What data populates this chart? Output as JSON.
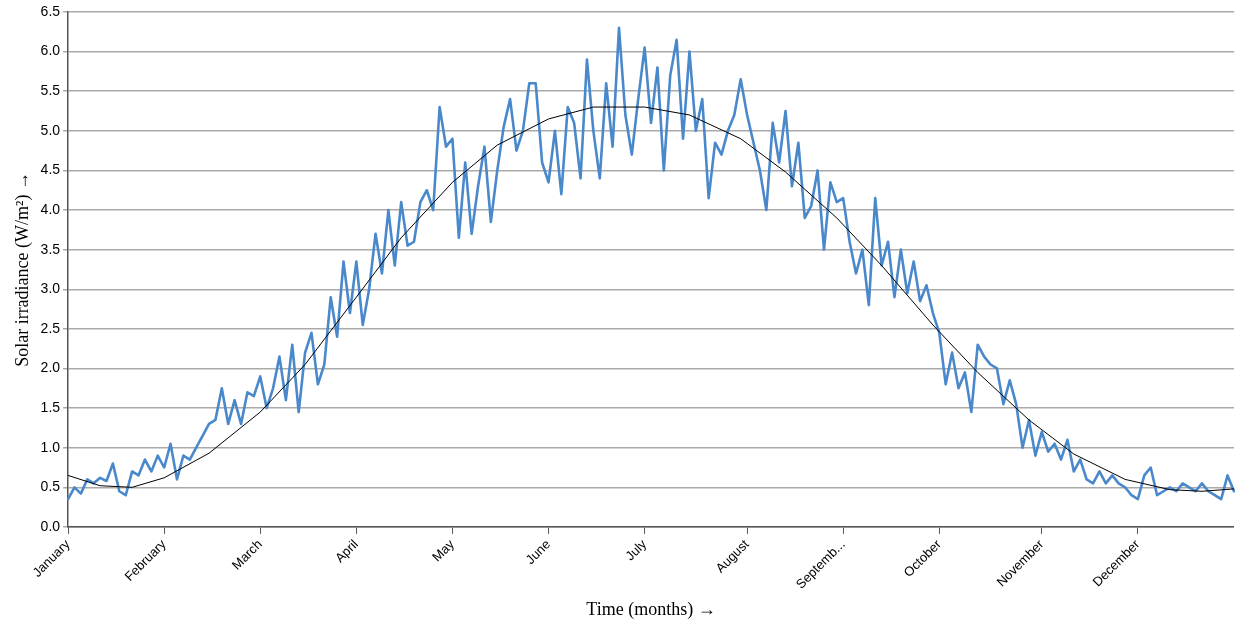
{
  "chart_data": {
    "type": "line",
    "xlabel": "Time (months) →",
    "ylabel": "Solar irradiance (W/m²) →",
    "categories": [
      "January",
      null,
      null,
      null,
      null,
      null,
      null,
      null,
      null,
      null,
      null,
      null,
      null,
      null,
      null,
      "February",
      null,
      null,
      null,
      null,
      null,
      null,
      null,
      null,
      null,
      null,
      null,
      null,
      null,
      null,
      "March",
      null,
      null,
      null,
      null,
      null,
      null,
      null,
      null,
      null,
      null,
      null,
      null,
      null,
      null,
      "April",
      null,
      null,
      null,
      null,
      null,
      null,
      null,
      null,
      null,
      null,
      null,
      null,
      null,
      null,
      "May",
      null,
      null,
      null,
      null,
      null,
      null,
      null,
      null,
      null,
      null,
      null,
      null,
      null,
      null,
      "June",
      null,
      null,
      null,
      null,
      null,
      null,
      null,
      null,
      null,
      null,
      null,
      null,
      null,
      null,
      "July",
      null,
      null,
      null,
      null,
      null,
      null,
      null,
      null,
      null,
      null,
      null,
      null,
      null,
      null,
      null,
      "August",
      null,
      null,
      null,
      null,
      null,
      null,
      null,
      null,
      null,
      null,
      null,
      null,
      null,
      null,
      "Septemb...",
      null,
      null,
      null,
      null,
      null,
      null,
      null,
      null,
      null,
      null,
      null,
      null,
      null,
      null,
      "October",
      null,
      null,
      null,
      null,
      null,
      null,
      null,
      null,
      null,
      null,
      null,
      null,
      null,
      null,
      null,
      "November",
      null,
      null,
      null,
      null,
      null,
      null,
      null,
      null,
      null,
      null,
      null,
      null,
      null,
      null,
      "December",
      null,
      null,
      null,
      null,
      null,
      null,
      null,
      null,
      null,
      null,
      null,
      null,
      null,
      null,
      null
    ],
    "ylim": [
      0,
      6.5
    ],
    "yticks": [
      {
        "value": 0,
        "label": "0.0"
      },
      {
        "value": 0.5,
        "label": "0.5"
      },
      {
        "value": 1,
        "label": "1.0"
      },
      {
        "value": 1.5,
        "label": "1.5"
      },
      {
        "value": 2,
        "label": "2.0"
      },
      {
        "value": 2.5,
        "label": "2.5"
      },
      {
        "value": 3,
        "label": "3.0"
      },
      {
        "value": 3.5,
        "label": "3.5"
      },
      {
        "value": 4,
        "label": "4.0"
      },
      {
        "value": 4.5,
        "label": "4.5"
      },
      {
        "value": 5,
        "label": "5.0"
      },
      {
        "value": 5.5,
        "label": "5.5"
      },
      {
        "value": 6,
        "label": "6.0"
      },
      {
        "value": 6.5,
        "label": "6.5"
      }
    ],
    "grid": "y",
    "legend": false,
    "marker": "none",
    "line_style": "solid",
    "series": [
      {
        "color": "#4a88cc",
        "values": [
          0.35,
          0.5,
          0.42,
          0.6,
          0.55,
          0.62,
          0.58,
          0.8,
          0.45,
          0.4,
          0.7,
          0.65,
          0.85,
          0.7,
          0.9,
          0.75,
          1.05,
          0.6,
          0.9,
          0.85,
          1.0,
          1.15,
          1.3,
          1.35,
          1.75,
          1.3,
          1.6,
          1.3,
          1.7,
          1.65,
          1.9,
          1.5,
          1.75,
          2.15,
          1.6,
          2.3,
          1.45,
          2.2,
          2.45,
          1.8,
          2.05,
          2.9,
          2.4,
          3.35,
          2.7,
          3.35,
          2.55,
          3.0,
          3.7,
          3.2,
          4.0,
          3.3,
          4.1,
          3.55,
          3.6,
          4.1,
          4.25,
          4.0,
          5.3,
          4.8,
          4.9,
          3.65,
          4.6,
          3.7,
          4.3,
          4.8,
          3.85,
          4.5,
          5.05,
          5.4,
          4.75,
          5.0,
          5.6,
          5.6,
          4.6,
          4.35,
          5.0,
          4.2,
          5.3,
          5.1,
          4.4,
          5.9,
          5.0,
          4.4,
          5.6,
          4.8,
          6.3,
          5.2,
          4.7,
          5.4,
          6.05,
          5.1,
          5.8,
          4.5,
          5.7,
          6.15,
          4.9,
          6.0,
          5.0,
          5.4,
          4.15,
          4.85,
          4.7,
          5.0,
          5.2,
          5.65,
          5.2,
          4.85,
          4.5,
          4.0,
          5.1,
          4.6,
          5.25,
          4.3,
          4.85,
          3.9,
          4.05,
          4.5,
          3.5,
          4.35,
          4.1,
          4.15,
          3.6,
          3.2,
          3.5,
          2.8,
          4.15,
          3.3,
          3.6,
          2.9,
          3.5,
          2.95,
          3.35,
          2.85,
          3.05,
          2.7,
          2.45,
          1.8,
          2.2,
          1.75,
          1.95,
          1.45,
          2.3,
          2.15,
          2.05,
          2.0,
          1.55,
          1.85,
          1.55,
          1.0,
          1.35,
          0.9,
          1.2,
          0.95,
          1.05,
          0.85,
          1.1,
          0.7,
          0.85,
          0.6,
          0.55,
          0.7,
          0.55,
          0.65,
          0.55,
          0.5,
          0.4,
          0.35,
          0.65,
          0.75,
          0.4,
          0.45,
          0.5,
          0.45,
          0.55,
          0.5,
          0.45,
          0.55,
          0.45,
          0.4,
          0.35,
          0.65,
          0.45
        ]
      },
      {
        "color": "#000000",
        "values": [
          0.65,
          null,
          null,
          null,
          null,
          0.52,
          null,
          null,
          null,
          null,
          0.5,
          null,
          null,
          null,
          null,
          0.62,
          null,
          null,
          null,
          null,
          null,
          null,
          0.93,
          null,
          null,
          null,
          null,
          null,
          null,
          null,
          1.45,
          null,
          null,
          null,
          null,
          null,
          null,
          2.05,
          null,
          null,
          null,
          null,
          null,
          null,
          null,
          2.9,
          null,
          null,
          null,
          null,
          null,
          null,
          3.65,
          null,
          null,
          null,
          null,
          null,
          null,
          null,
          4.35,
          null,
          null,
          null,
          null,
          null,
          null,
          4.82,
          null,
          null,
          null,
          null,
          null,
          null,
          null,
          5.15,
          null,
          null,
          null,
          null,
          null,
          null,
          5.3,
          null,
          null,
          null,
          null,
          null,
          null,
          null,
          5.3,
          null,
          null,
          null,
          null,
          null,
          null,
          5.2,
          null,
          null,
          null,
          null,
          null,
          null,
          null,
          4.9,
          null,
          null,
          null,
          null,
          null,
          null,
          4.48,
          null,
          null,
          null,
          null,
          null,
          null,
          null,
          3.9,
          null,
          null,
          null,
          null,
          null,
          null,
          3.3,
          null,
          null,
          null,
          null,
          null,
          null,
          null,
          2.55,
          null,
          null,
          null,
          null,
          null,
          null,
          1.95,
          null,
          null,
          null,
          null,
          null,
          null,
          null,
          1.35,
          null,
          null,
          null,
          null,
          null,
          null,
          0.92,
          null,
          null,
          null,
          null,
          null,
          null,
          null,
          0.6,
          null,
          null,
          null,
          null,
          null,
          null,
          0.47,
          null,
          null,
          null,
          null,
          0.45,
          null,
          null,
          null,
          null,
          0.48
        ]
      }
    ]
  }
}
